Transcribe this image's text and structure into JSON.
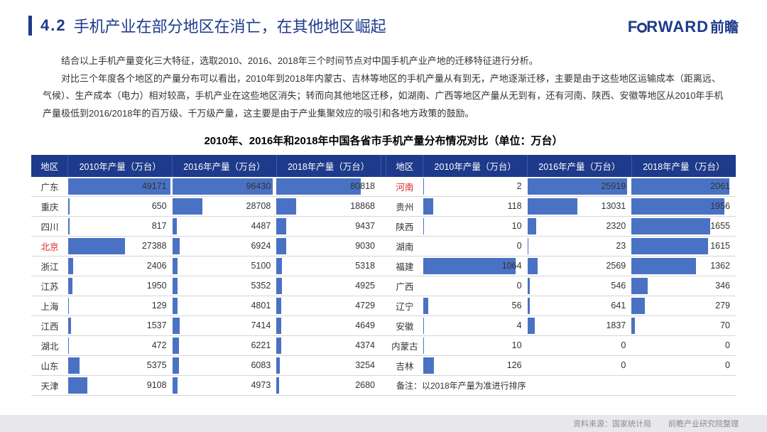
{
  "header": {
    "section_num": "4.2",
    "title": "手机产业在部分地区在消亡，在其他地区崛起",
    "logo_en_1": "F",
    "logo_en_2": "RWARD",
    "logo_zh": "前瞻"
  },
  "paragraphs": [
    "结合以上手机产量变化三大特征，选取2010、2016、2018年三个时间节点对中国手机产业产地的迁移特征进行分析。",
    "对比三个年度各个地区的产量分布可以看出，2010年到2018年内蒙古、吉林等地区的手机产量从有到无，产地逐渐迁移，主要是由于这些地区运输成本（距离远、气候）、生产成本（电力）相对较高，手机产业在这些地区消失；转而向其他地区迁移，如湖南、广西等地区产量从无到有，还有河南、陕西、安徽等地区从2010年手机产量极低到2016/2018年的百万级、千万级产量，这主要是由于产业集聚效应的吸引和各地方政策的鼓励。"
  ],
  "chart_title": "2010年、2016年和2018年中国各省市手机产量分布情况对比（单位：万台）",
  "table": {
    "headers": [
      "地区",
      "2010年产量（万台）",
      "2016年产量（万台）",
      "2018年产量（万台）"
    ],
    "bar_color": "#4a72c4",
    "header_bg": "#1e3a8a",
    "max_left": {
      "c2010": 50000,
      "c2016": 100000,
      "c2018": 100000
    },
    "max_right": {
      "c2010": 1200,
      "c2016": 27000,
      "c2018": 2200
    },
    "left_rows": [
      {
        "region": "广东",
        "hl": false,
        "v2010": 49171,
        "v2016": 96430,
        "v2018": 80818
      },
      {
        "region": "重庆",
        "hl": false,
        "v2010": 650,
        "v2016": 28708,
        "v2018": 18868
      },
      {
        "region": "四川",
        "hl": false,
        "v2010": 817,
        "v2016": 4487,
        "v2018": 9437
      },
      {
        "region": "北京",
        "hl": true,
        "v2010": 27388,
        "v2016": 6924,
        "v2018": 9030
      },
      {
        "region": "浙江",
        "hl": false,
        "v2010": 2406,
        "v2016": 5100,
        "v2018": 5318
      },
      {
        "region": "江苏",
        "hl": false,
        "v2010": 1950,
        "v2016": 5352,
        "v2018": 4925
      },
      {
        "region": "上海",
        "hl": false,
        "v2010": 129,
        "v2016": 4801,
        "v2018": 4729
      },
      {
        "region": "江西",
        "hl": false,
        "v2010": 1537,
        "v2016": 7414,
        "v2018": 4649
      },
      {
        "region": "湖北",
        "hl": false,
        "v2010": 472,
        "v2016": 6221,
        "v2018": 4374
      },
      {
        "region": "山东",
        "hl": false,
        "v2010": 5375,
        "v2016": 6083,
        "v2018": 3254
      },
      {
        "region": "天津",
        "hl": false,
        "v2010": 9108,
        "v2016": 4973,
        "v2018": 2680
      }
    ],
    "right_rows": [
      {
        "region": "河南",
        "hl": true,
        "v2010": 2,
        "v2016": 25919,
        "v2018": 2061
      },
      {
        "region": "贵州",
        "hl": false,
        "v2010": 118,
        "v2016": 13031,
        "v2018": 1956
      },
      {
        "region": "陕西",
        "hl": false,
        "v2010": 10,
        "v2016": 2320,
        "v2018": 1655
      },
      {
        "region": "湖南",
        "hl": false,
        "v2010": 0,
        "v2016": 23,
        "v2018": 1615
      },
      {
        "region": "福建",
        "hl": false,
        "v2010": 1064,
        "v2016": 2569,
        "v2018": 1362
      },
      {
        "region": "广西",
        "hl": false,
        "v2010": 0,
        "v2016": 546,
        "v2018": 346
      },
      {
        "region": "辽宁",
        "hl": false,
        "v2010": 56,
        "v2016": 641,
        "v2018": 279
      },
      {
        "region": "安徽",
        "hl": false,
        "v2010": 4,
        "v2016": 1837,
        "v2018": 70
      },
      {
        "region": "内蒙古",
        "hl": false,
        "v2010": 10,
        "v2016": 0,
        "v2018": 0
      },
      {
        "region": "吉林",
        "hl": false,
        "v2010": 126,
        "v2016": 0,
        "v2018": 0
      }
    ],
    "note_label": "备注：",
    "note_text": "以2018年产量为准进行排序"
  },
  "footer": {
    "src_label": "资料来源：",
    "src_value": "国家统计局",
    "org": "前瞻产业研究院整理"
  }
}
